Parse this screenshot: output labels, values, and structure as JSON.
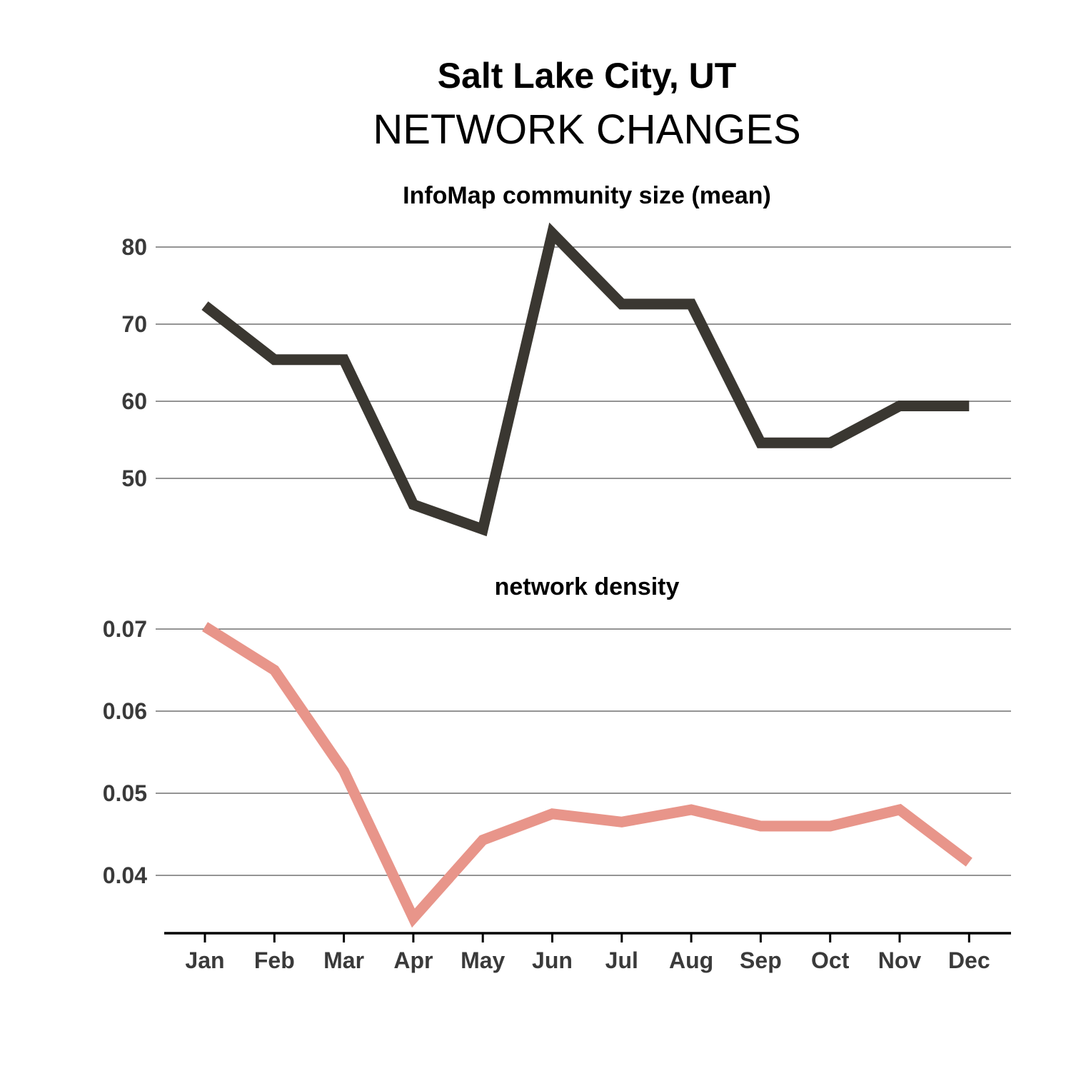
{
  "title": "Salt Lake City, UT",
  "subtitle": "NETWORK CHANGES",
  "chart_data": [
    {
      "type": "line",
      "title": "InfoMap community size (mean)",
      "categories": [
        "Jan",
        "Feb",
        "Mar",
        "Apr",
        "May",
        "Jun",
        "Jul",
        "Aug",
        "Sep",
        "Oct",
        "Nov",
        "Dec"
      ],
      "values": [
        72.4,
        65.4,
        65.4,
        46.6,
        43.4,
        81.8,
        72.6,
        72.6,
        54.6,
        54.6,
        59.4,
        59.4
      ],
      "yticks": [
        50,
        60,
        70,
        80
      ],
      "ytick_labels": [
        "50",
        "60",
        "70",
        "80"
      ],
      "ylim": [
        40,
        85
      ],
      "grid": true,
      "color": "#3a3731"
    },
    {
      "type": "line",
      "title": "network density",
      "categories": [
        "Jan",
        "Feb",
        "Mar",
        "Apr",
        "May",
        "Jun",
        "Jul",
        "Aug",
        "Sep",
        "Oct",
        "Nov",
        "Dec"
      ],
      "values": [
        0.0703,
        0.065,
        0.0527,
        0.0348,
        0.0443,
        0.0475,
        0.0465,
        0.048,
        0.046,
        0.046,
        0.048,
        0.0416
      ],
      "yticks": [
        0.04,
        0.05,
        0.06,
        0.07
      ],
      "ytick_labels": [
        "0.04",
        "0.05",
        "0.06",
        "0.07"
      ],
      "ylim": [
        0.033,
        0.0715
      ],
      "grid": true,
      "color": "#e8958a"
    }
  ]
}
